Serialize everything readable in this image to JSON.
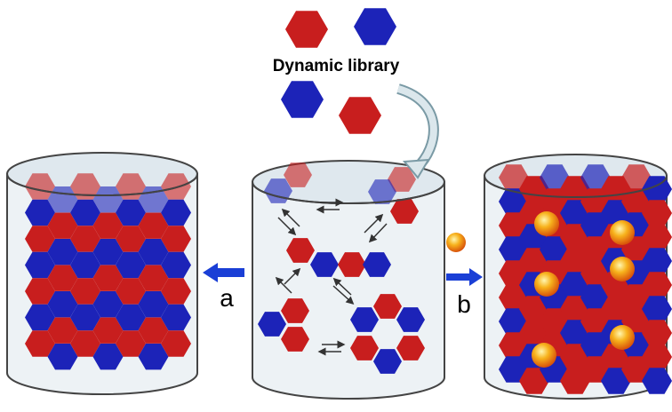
{
  "library_label": "Dynamic library",
  "arrow_a_label": "a",
  "arrow_b_label": "b"
}
